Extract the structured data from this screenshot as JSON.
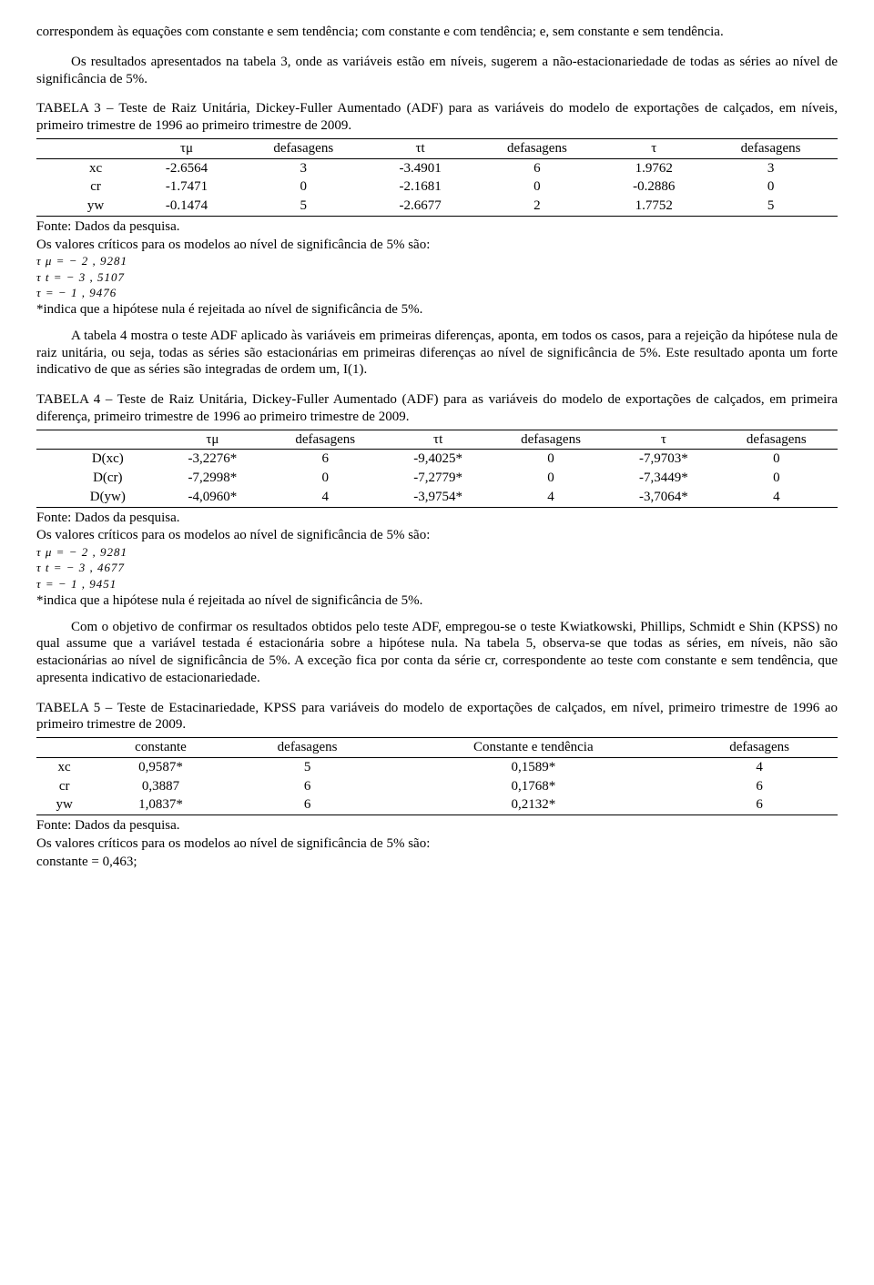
{
  "intro": {
    "p1": "correspondem às equações com constante e sem tendência; com constante e com tendência; e, sem constante e sem tendência.",
    "p2": "Os resultados apresentados na tabela 3, onde as variáveis estão em níveis, sugerem a não-estacionariedade de todas as séries ao nível de significância de 5%."
  },
  "table3": {
    "caption": "TABELA 3 – Teste de Raiz Unitária, Dickey-Fuller Aumentado (ADF) para as variáveis do modelo de exportações de calçados, em níveis, primeiro trimestre de 1996 ao primeiro trimestre de 2009.",
    "headers": [
      "",
      "τμ",
      "defasagens",
      "τt",
      "defasagens",
      "τ",
      "defasagens"
    ],
    "rows": [
      [
        "xc",
        "-2.6564",
        "3",
        "-3.4901",
        "6",
        "1.9762",
        "3"
      ],
      [
        "cr",
        "-1.7471",
        "0",
        "-2.1681",
        "0",
        "-0.2886",
        "0"
      ],
      [
        "yw",
        "-0.1474",
        "5",
        "-2.6677",
        "2",
        "1.7752",
        "5"
      ]
    ],
    "fonte": "Fonte: Dados da pesquisa.",
    "notes_intro": "Os valores críticos para os modelos ao nível de significância de 5% são:",
    "crit1": "τ μ  =  − 2 , 9281",
    "crit2": "τ t  =  − 3 , 5107",
    "crit3": "τ  =  − 1 , 9476",
    "footnote": "*indica que a hipótese nula é rejeitada ao nível de significância de 5%."
  },
  "para3": "A tabela 4 mostra o teste ADF aplicado às variáveis em primeiras diferenças, aponta, em todos os casos, para a rejeição da hipótese nula de raiz unitária, ou seja, todas as séries são estacionárias em primeiras diferenças ao nível de significância de 5%. Este resultado aponta um forte indicativo de que as séries são integradas de ordem um, I(1).",
  "table4": {
    "caption": "TABELA 4 – Teste de Raiz Unitária, Dickey-Fuller Aumentado (ADF) para as variáveis do modelo de exportações de calçados, em primeira diferença, primeiro trimestre de 1996 ao primeiro trimestre de 2009.",
    "headers": [
      "",
      "τμ",
      "defasagens",
      "τt",
      "defasagens",
      "τ",
      "defasagens"
    ],
    "rows": [
      [
        "D(xc)",
        "-3,2276*",
        "6",
        "-9,4025*",
        "0",
        "-7,9703*",
        "0"
      ],
      [
        "D(cr)",
        "-7,2998*",
        "0",
        "-7,2779*",
        "0",
        "-7,3449*",
        "0"
      ],
      [
        "D(yw)",
        "-4,0960*",
        "4",
        "-3,9754*",
        "4",
        "-3,7064*",
        "4"
      ]
    ],
    "fonte": "Fonte: Dados da pesquisa.",
    "notes_intro": "Os valores críticos para os modelos ao nível de significância de 5% são:",
    "crit1": "τ μ  =  − 2 , 9281",
    "crit2": "τ t  =  − 3 , 4677",
    "crit3": "τ  =  − 1 , 9451",
    "footnote": "*indica que a hipótese nula é rejeitada ao nível de significância de 5%."
  },
  "para4": "Com o objetivo de confirmar os resultados obtidos pelo teste ADF, empregou-se o teste Kwiatkowski, Phillips, Schmidt e Shin (KPSS) no qual assume que a variável testada é estacionária sobre a hipótese nula. Na tabela 5, observa-se que todas as séries, em níveis, não são estacionárias ao nível de significância de 5%. A exceção fica por conta da série cr, correspondente ao teste com constante e sem tendência, que apresenta indicativo de estacionariedade.",
  "table5": {
    "caption": "TABELA 5 – Teste de Estacinariedade, KPSS para variáveis do modelo de exportações de calçados, em nível, primeiro trimestre de 1996 ao primeiro trimestre de 2009.",
    "headers": [
      "",
      "constante",
      "defasagens",
      "Constante e tendência",
      "defasagens"
    ],
    "rows": [
      [
        "xc",
        "0,9587*",
        "5",
        "0,1589*",
        "4"
      ],
      [
        "cr",
        "0,3887",
        "6",
        "0,1768*",
        "6"
      ],
      [
        "yw",
        "1,0837*",
        "6",
        "0,2132*",
        "6"
      ]
    ],
    "fonte": "Fonte: Dados da pesquisa.",
    "notes_intro": "Os valores críticos para os modelos ao nível de significância de 5% são:",
    "crit1": "constante = 0,463;"
  }
}
